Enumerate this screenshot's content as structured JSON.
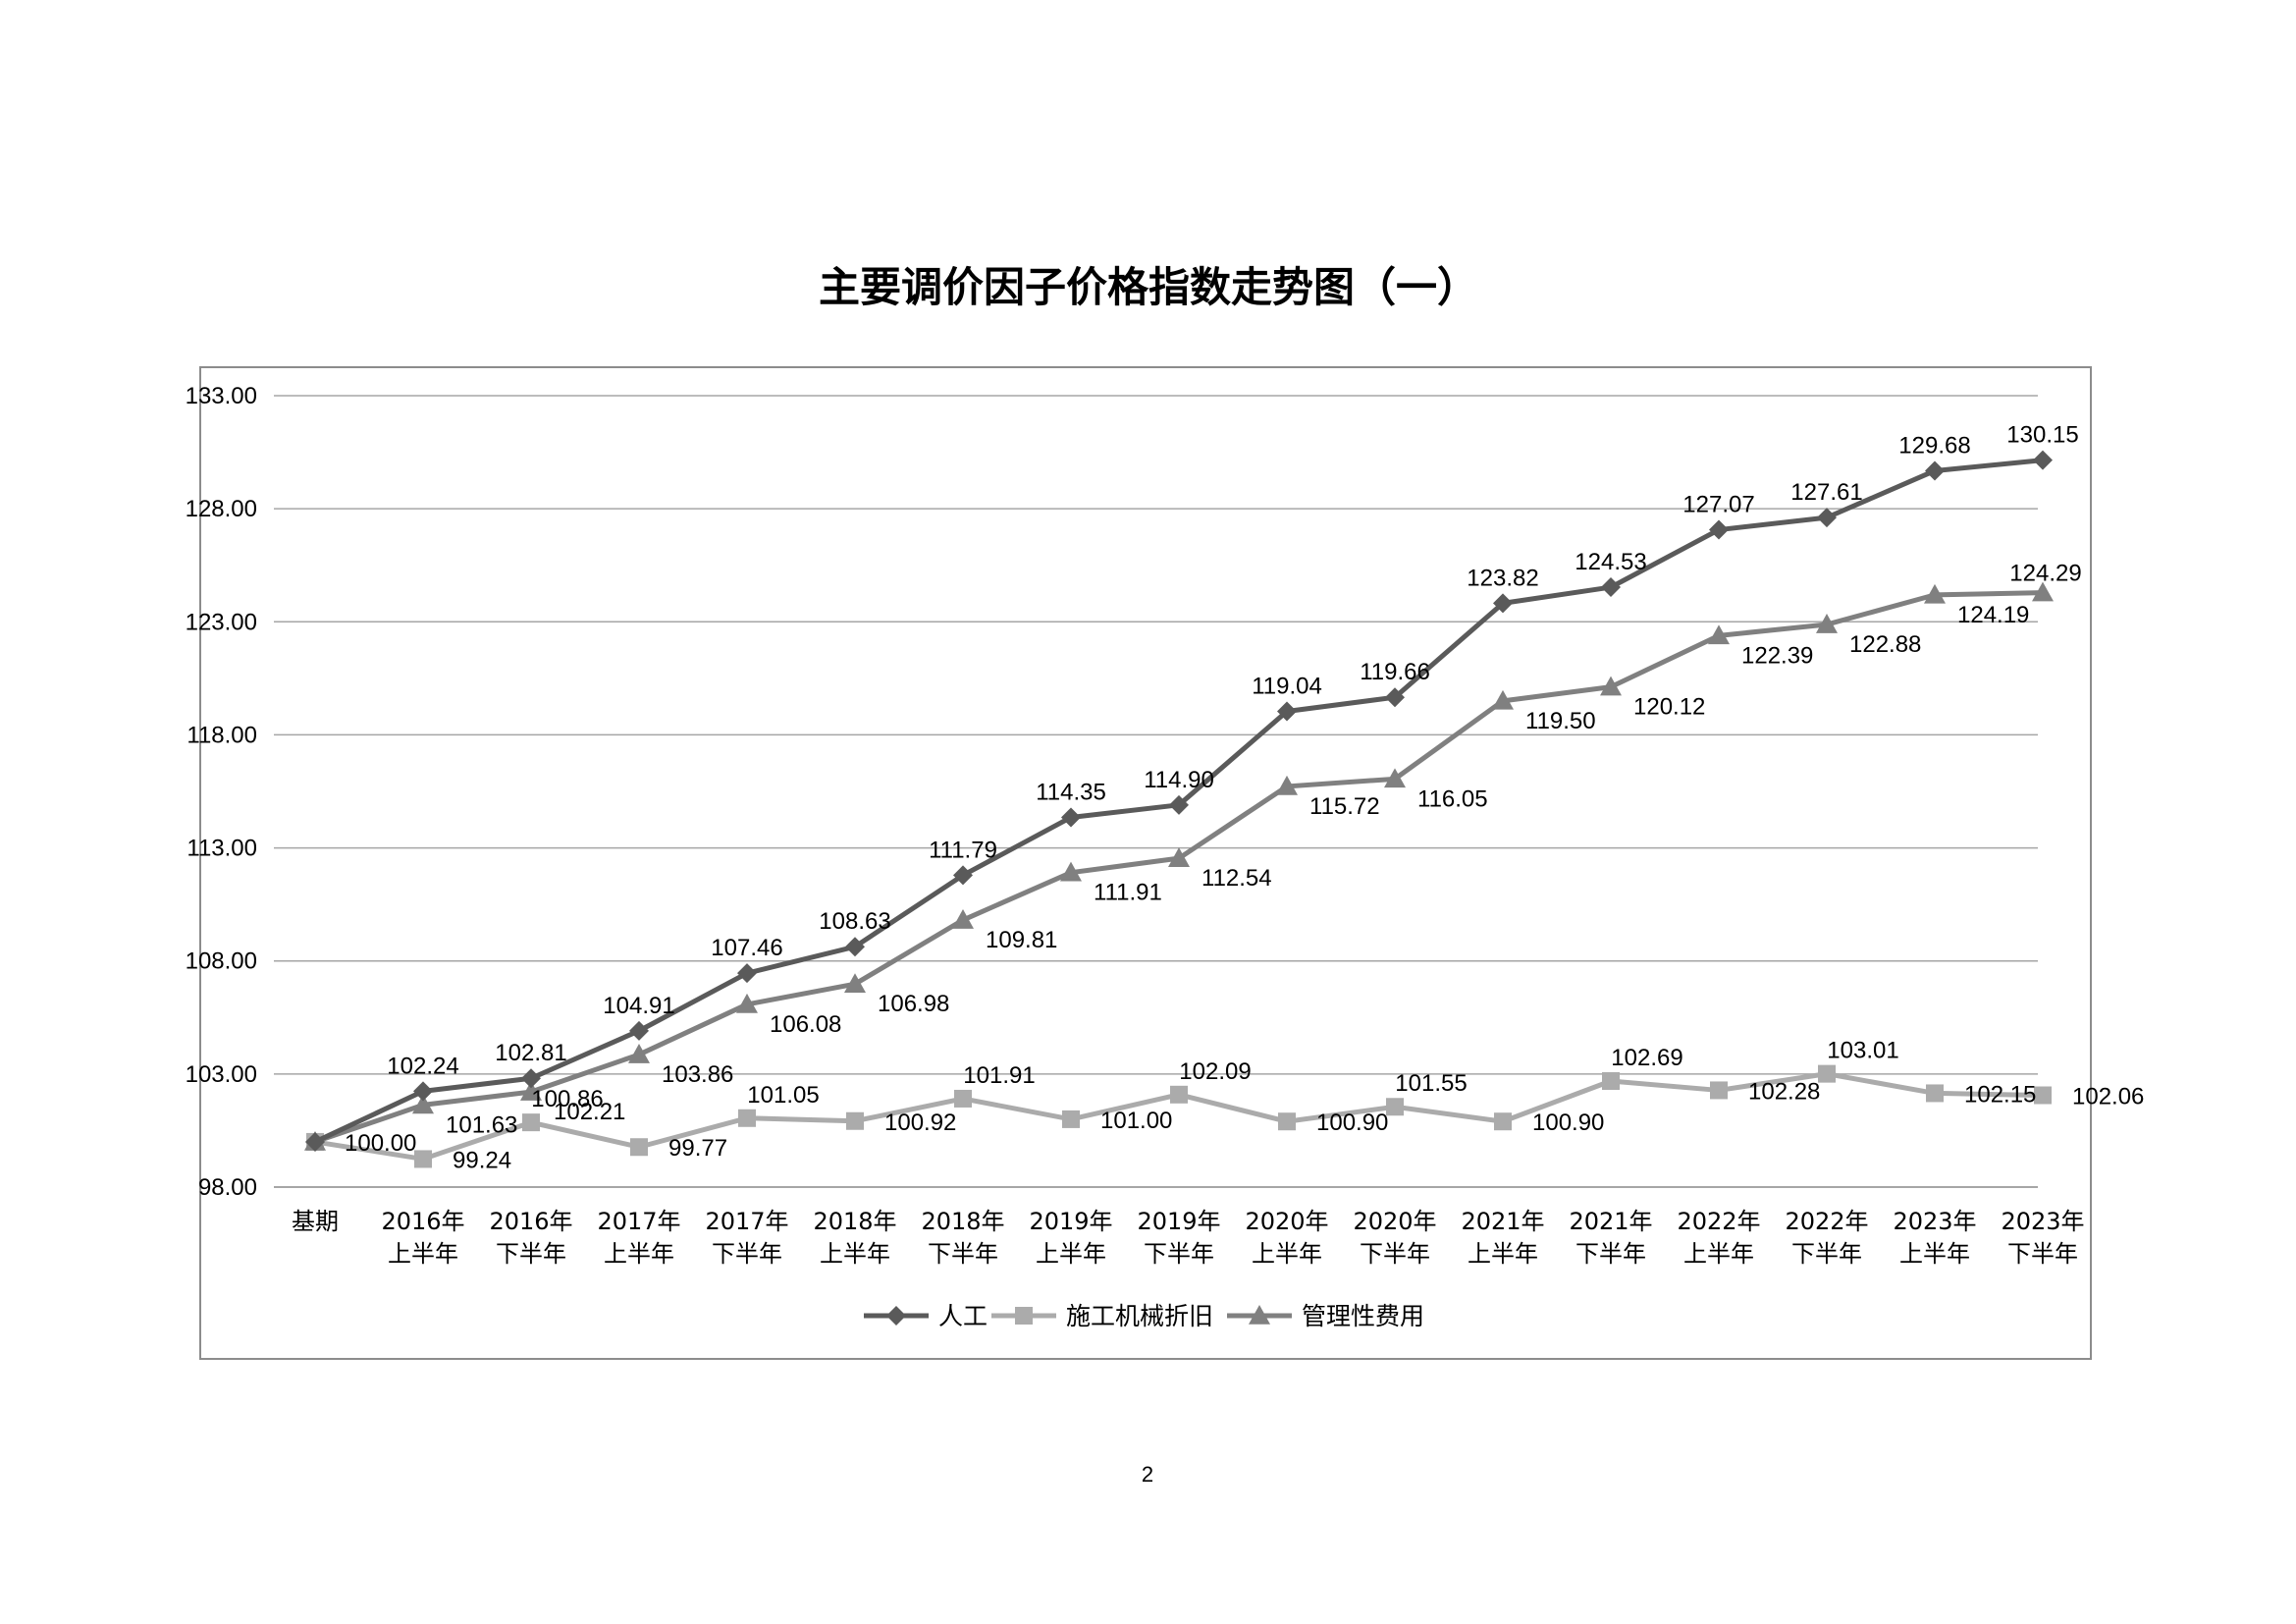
{
  "page": {
    "page_number": "2"
  },
  "chart_data": {
    "type": "line",
    "title": "主要调价因子价格指数走势图（一）",
    "xlabel": "",
    "ylabel": "",
    "ylim": [
      98,
      133
    ],
    "yticks": [
      "98.00",
      "103.00",
      "108.00",
      "113.00",
      "118.00",
      "123.00",
      "128.00",
      "133.00"
    ],
    "grid": true,
    "legend_position": "bottom",
    "categories": [
      [
        "基期"
      ],
      [
        "2016年",
        "上半年"
      ],
      [
        "2016年",
        "下半年"
      ],
      [
        "2017年",
        "上半年"
      ],
      [
        "2017年",
        "下半年"
      ],
      [
        "2018年",
        "上半年"
      ],
      [
        "2018年",
        "下半年"
      ],
      [
        "2019年",
        "上半年"
      ],
      [
        "2019年",
        "下半年"
      ],
      [
        "2020年",
        "上半年"
      ],
      [
        "2020年",
        "下半年"
      ],
      [
        "2021年",
        "上半年"
      ],
      [
        "2021年",
        "下半年"
      ],
      [
        "2022年",
        "上半年"
      ],
      [
        "2022年",
        "下半年"
      ],
      [
        "2023年",
        "上半年"
      ],
      [
        "2023年",
        "下半年"
      ]
    ],
    "series": [
      {
        "name": "人工",
        "marker": "diamond",
        "color": "#5a5a5a",
        "values": [
          100.0,
          102.24,
          102.81,
          104.91,
          107.46,
          108.63,
          111.79,
          114.35,
          114.9,
          119.04,
          119.66,
          123.82,
          124.53,
          127.07,
          127.61,
          129.68,
          130.15
        ],
        "labels": [
          "",
          "102.24",
          "102.81",
          "104.91",
          "107.46",
          "108.63",
          "111.79",
          "114.35",
          "114.90",
          "119.04",
          "119.66",
          "123.82",
          "124.53",
          "127.07",
          "127.61",
          "129.68",
          "130.15"
        ]
      },
      {
        "name": "施工机械折旧",
        "marker": "square",
        "color": "#ababab",
        "values": [
          100.0,
          99.24,
          100.86,
          99.77,
          101.05,
          100.92,
          101.91,
          101.0,
          102.09,
          100.9,
          101.55,
          100.9,
          102.69,
          102.28,
          103.01,
          102.15,
          102.06
        ],
        "labels": [
          "100.00",
          "99.24",
          "100.86",
          "99.77",
          "101.05",
          "100.92",
          "101.91",
          "101.00",
          "102.09",
          "100.90",
          "101.55",
          "100.90",
          "102.69",
          "102.28",
          "103.01",
          "102.15",
          "102.06"
        ]
      },
      {
        "name": "管理性费用",
        "marker": "triangle",
        "color": "#808080",
        "values": [
          100.0,
          101.63,
          102.21,
          103.86,
          106.08,
          106.98,
          109.81,
          111.91,
          112.54,
          115.72,
          116.05,
          119.5,
          120.12,
          122.39,
          122.88,
          124.19,
          124.29
        ],
        "labels": [
          "",
          "101.63",
          "102.21",
          "103.86",
          "106.08",
          "106.98",
          "109.81",
          "111.91",
          "112.54",
          "115.72",
          "116.05",
          "119.50",
          "120.12",
          "122.39",
          "122.88",
          "124.19",
          "124.29"
        ]
      }
    ]
  }
}
